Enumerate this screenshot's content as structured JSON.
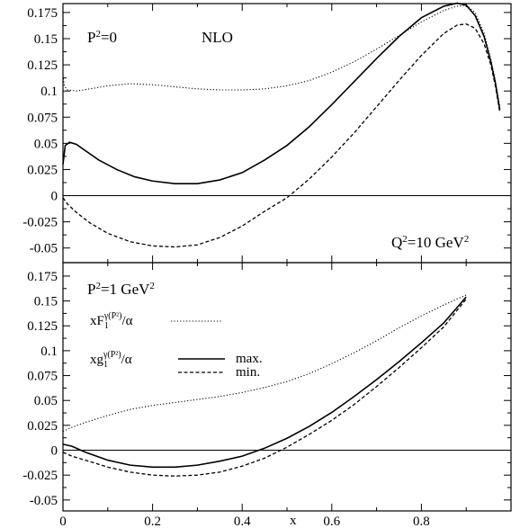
{
  "chart_data": [
    {
      "type": "line",
      "panel": "top",
      "annotations": {
        "condition": "P²=0",
        "order": "NLO",
        "scale": "Q²=10 GeV²"
      },
      "xlim": [
        0,
        1
      ],
      "ylim": [
        -0.06,
        0.18
      ],
      "yticks": [
        "0.175",
        "0.15",
        "0.125",
        "0.1",
        "0.075",
        "0.05",
        "0.025",
        "0",
        "-0.025",
        "-0.05"
      ],
      "series": [
        {
          "style": "dotted",
          "x": [
            0.0,
            0.003,
            0.01,
            0.03,
            0.06,
            0.1,
            0.15,
            0.2,
            0.25,
            0.3,
            0.35,
            0.4,
            0.45,
            0.5,
            0.55,
            0.6,
            0.65,
            0.7,
            0.75,
            0.8,
            0.85,
            0.88,
            0.9,
            0.92,
            0.94,
            0.955,
            0.965,
            0.975
          ],
          "y": [
            0.115,
            0.105,
            0.101,
            0.1,
            0.102,
            0.105,
            0.107,
            0.106,
            0.104,
            0.102,
            0.101,
            0.101,
            0.102,
            0.105,
            0.11,
            0.118,
            0.128,
            0.14,
            0.153,
            0.166,
            0.177,
            0.181,
            0.182,
            0.175,
            0.155,
            0.13,
            0.11,
            0.085
          ]
        },
        {
          "style": "solid",
          "x": [
            0.0,
            0.005,
            0.015,
            0.03,
            0.05,
            0.08,
            0.12,
            0.16,
            0.2,
            0.25,
            0.3,
            0.35,
            0.4,
            0.45,
            0.5,
            0.55,
            0.6,
            0.65,
            0.7,
            0.75,
            0.8,
            0.85,
            0.88,
            0.9,
            0.92,
            0.94,
            0.955,
            0.965,
            0.975
          ],
          "y": [
            0.03,
            0.048,
            0.051,
            0.049,
            0.043,
            0.034,
            0.025,
            0.018,
            0.014,
            0.0115,
            0.0115,
            0.015,
            0.022,
            0.034,
            0.048,
            0.066,
            0.087,
            0.109,
            0.131,
            0.152,
            0.17,
            0.181,
            0.184,
            0.182,
            0.172,
            0.152,
            0.128,
            0.108,
            0.082
          ]
        },
        {
          "style": "dashed",
          "x": [
            0.0,
            0.01,
            0.03,
            0.06,
            0.1,
            0.15,
            0.2,
            0.25,
            0.3,
            0.35,
            0.4,
            0.45,
            0.5,
            0.55,
            0.6,
            0.65,
            0.7,
            0.75,
            0.8,
            0.85,
            0.88,
            0.9,
            0.92,
            0.94,
            0.955,
            0.965,
            0.975
          ],
          "y": [
            -0.002,
            -0.008,
            -0.016,
            -0.026,
            -0.036,
            -0.044,
            -0.048,
            -0.049,
            -0.047,
            -0.04,
            -0.029,
            -0.015,
            -0.002,
            0.016,
            0.037,
            0.06,
            0.085,
            0.11,
            0.134,
            0.155,
            0.163,
            0.164,
            0.16,
            0.145,
            0.125,
            0.105,
            0.08
          ]
        }
      ]
    },
    {
      "type": "line",
      "panel": "bottom",
      "annotations": {
        "condition": "P²=1 GeV²"
      },
      "legend": [
        {
          "label": "xF₁^γ(P²)/α",
          "style": "dotted"
        },
        {
          "label": "xg₁^γ(P²)/α",
          "style": "solid",
          "tag": "max."
        },
        {
          "label": "",
          "style": "dashed",
          "tag": "min."
        }
      ],
      "xlabel": "x",
      "xlim": [
        0,
        1
      ],
      "xticks": [
        "0",
        "0.2",
        "0.4",
        "0.6",
        "0.8"
      ],
      "ylim": [
        -0.06,
        0.19
      ],
      "yticks": [
        "0.175",
        "0.15",
        "0.125",
        "0.1",
        "0.075",
        "0.05",
        "0.025",
        "0",
        "-0.025",
        "-0.05"
      ],
      "series": [
        {
          "style": "dotted",
          "x": [
            0.0,
            0.02,
            0.05,
            0.1,
            0.15,
            0.2,
            0.25,
            0.3,
            0.35,
            0.4,
            0.45,
            0.5,
            0.55,
            0.6,
            0.65,
            0.7,
            0.75,
            0.8,
            0.85,
            0.9
          ],
          "y": [
            0.019,
            0.023,
            0.028,
            0.035,
            0.041,
            0.045,
            0.048,
            0.051,
            0.054,
            0.058,
            0.063,
            0.069,
            0.077,
            0.087,
            0.098,
            0.11,
            0.123,
            0.135,
            0.146,
            0.156
          ]
        },
        {
          "style": "solid",
          "x": [
            0.0,
            0.02,
            0.05,
            0.1,
            0.15,
            0.2,
            0.25,
            0.3,
            0.35,
            0.4,
            0.45,
            0.5,
            0.55,
            0.6,
            0.65,
            0.7,
            0.75,
            0.8,
            0.85,
            0.9
          ],
          "y": [
            0.006,
            0.004,
            -0.002,
            -0.01,
            -0.015,
            -0.017,
            -0.017,
            -0.015,
            -0.011,
            -0.006,
            0.002,
            0.012,
            0.024,
            0.038,
            0.054,
            0.071,
            0.089,
            0.108,
            0.128,
            0.154
          ]
        },
        {
          "style": "dashed",
          "x": [
            0.0,
            0.02,
            0.05,
            0.1,
            0.15,
            0.2,
            0.25,
            0.3,
            0.35,
            0.4,
            0.45,
            0.5,
            0.55,
            0.6,
            0.65,
            0.7,
            0.75,
            0.8,
            0.85,
            0.9
          ],
          "y": [
            -0.002,
            -0.006,
            -0.01,
            -0.017,
            -0.022,
            -0.025,
            -0.026,
            -0.025,
            -0.022,
            -0.016,
            -0.008,
            0.003,
            0.016,
            0.03,
            0.046,
            0.064,
            0.083,
            0.103,
            0.124,
            0.152
          ]
        }
      ]
    }
  ]
}
